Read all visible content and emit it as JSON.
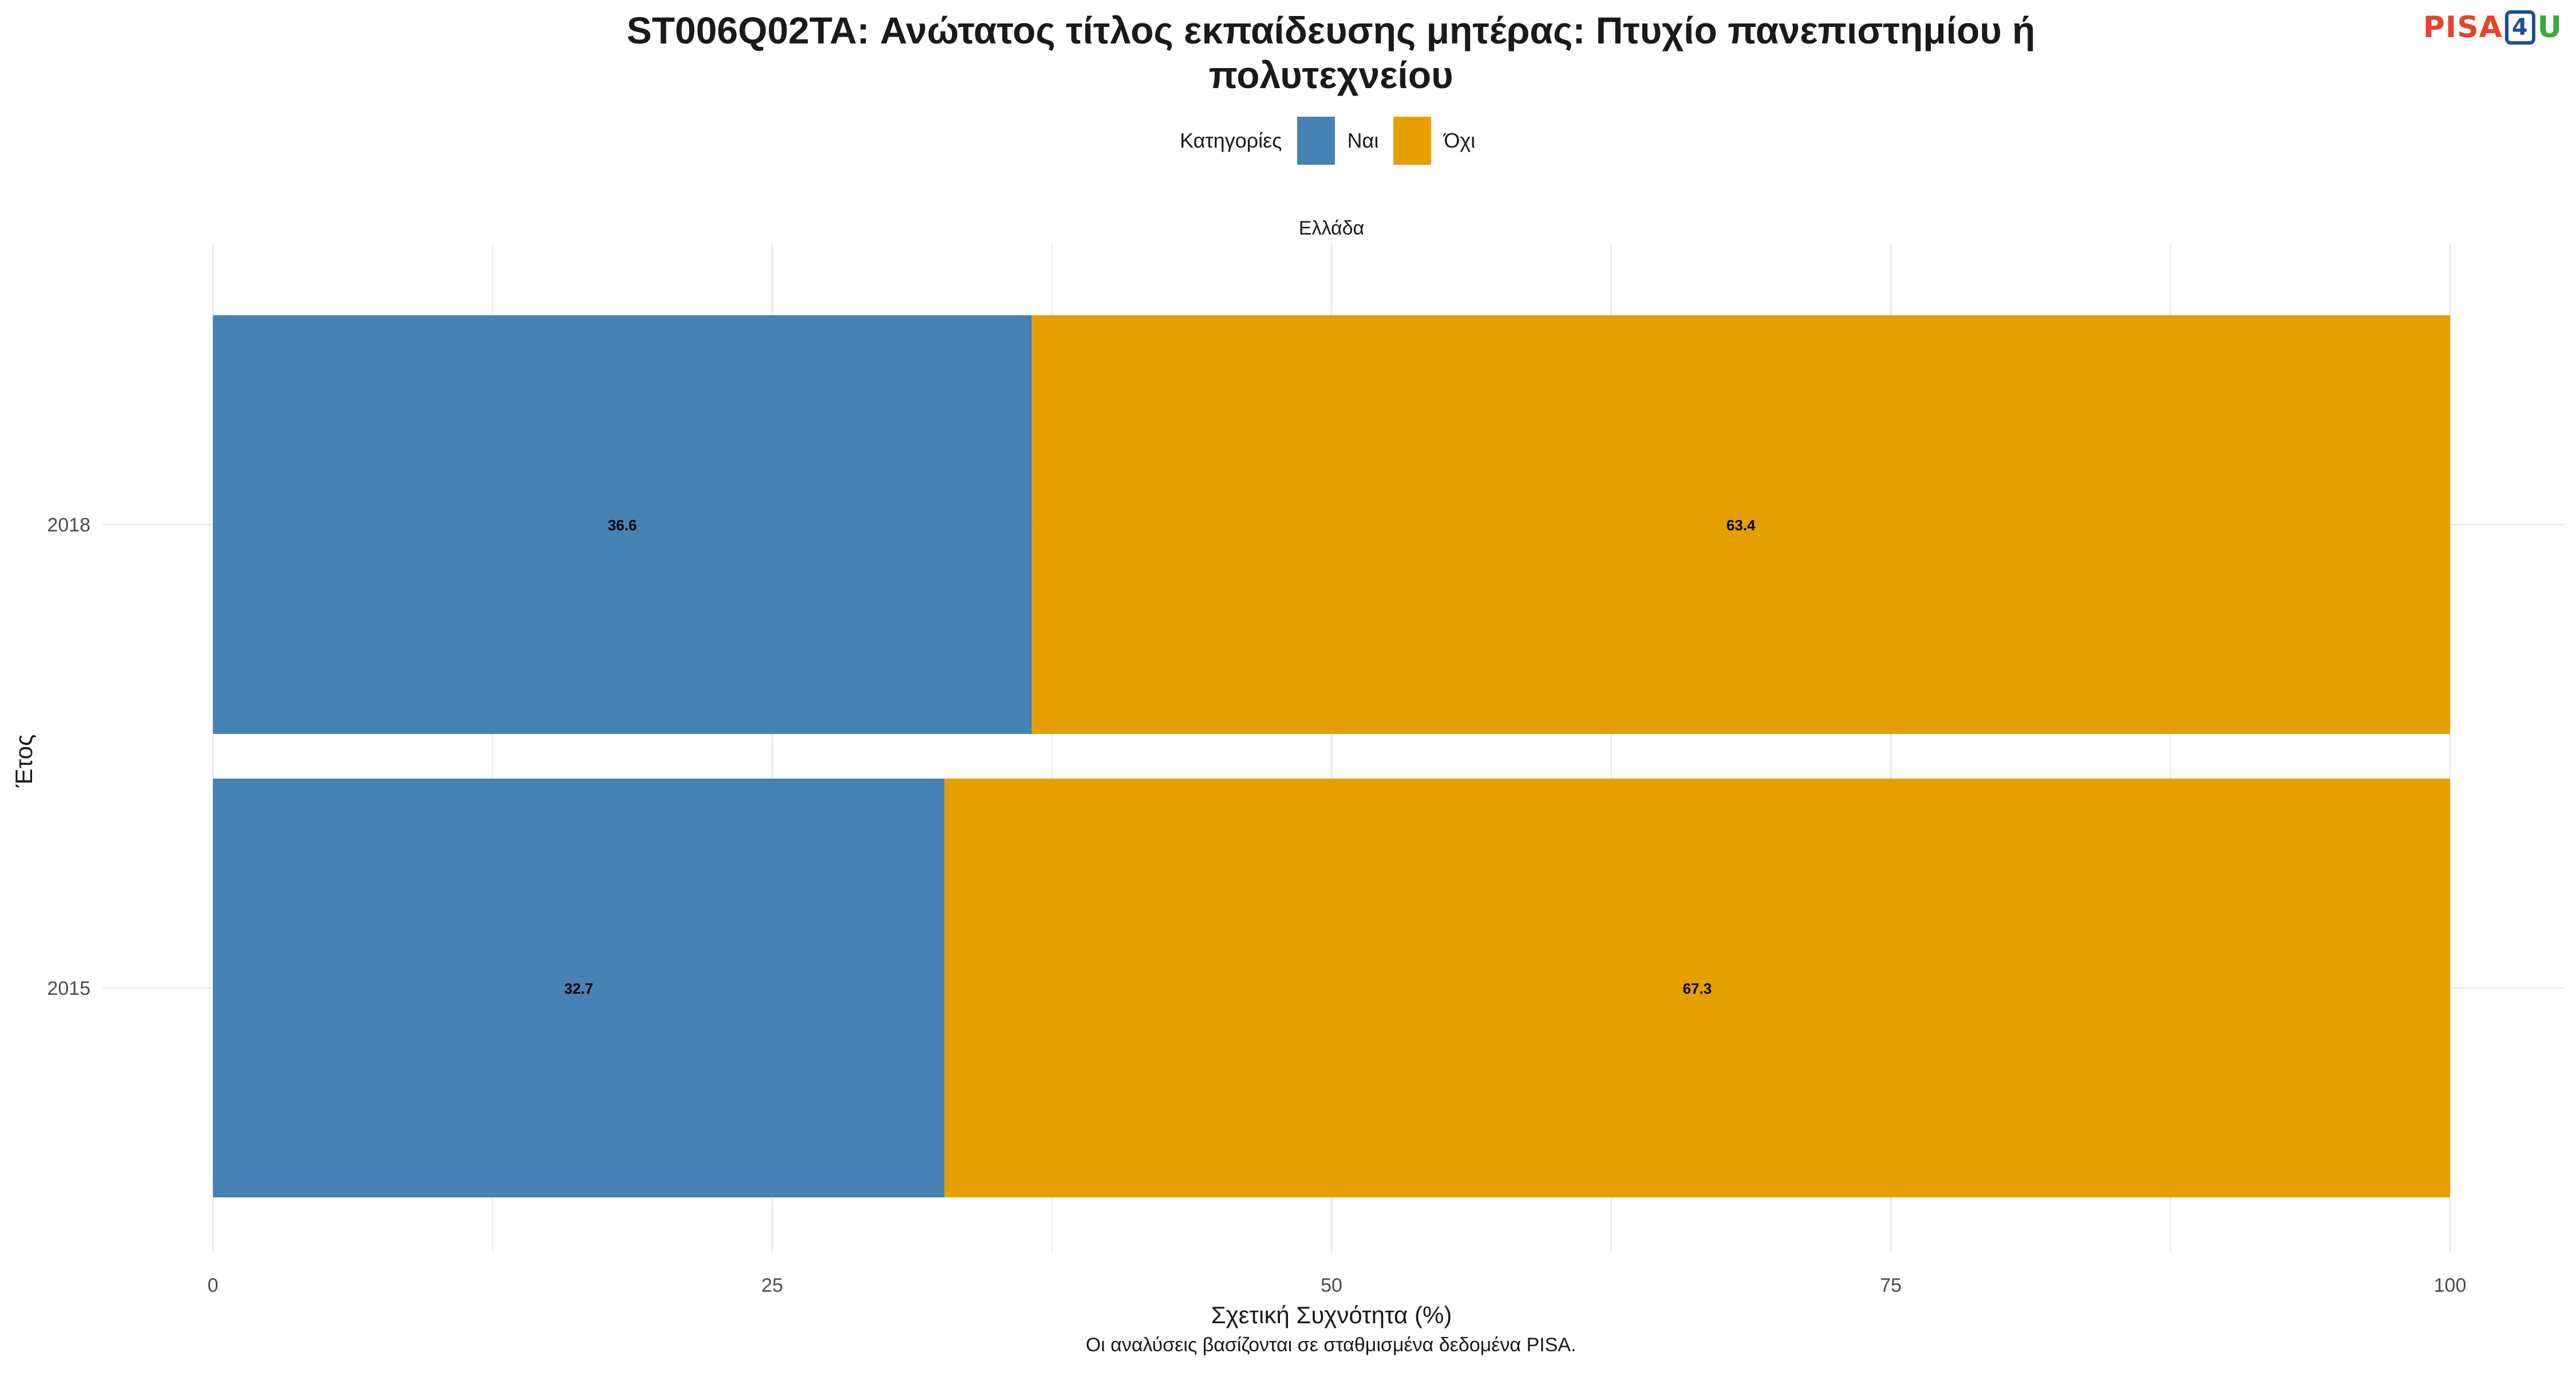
{
  "title_line1": "ST006Q02TA: Ανώτατος τίτλος εκπαίδευσης μητέρας: Πτυχίο πανεπιστημίου ή",
  "title_line2": "πολυτεχνείου",
  "logo": {
    "pisa": "PISA",
    "four": "4",
    "u": "U"
  },
  "legend": {
    "title": "Κατηγορίες",
    "placement": "top"
  },
  "caption": "Οι αναλύσεις βασίζονται σε σταθμισμένα δεδομένα PISA.",
  "colors": {
    "yes": "#4682b4",
    "no": "#e5a000",
    "grid": "#ebebeb"
  },
  "chart_data": {
    "type": "bar",
    "orientation": "horizontal",
    "stacked": true,
    "facet": "Ελλάδα",
    "categories": [
      "2018",
      "2015"
    ],
    "series": [
      {
        "name": "Ναι",
        "values": [
          36.6,
          32.7
        ]
      },
      {
        "name": "Όχι",
        "values": [
          63.4,
          67.3
        ]
      }
    ],
    "xlabel": "Σχετική Συχνότητα (%)",
    "ylabel": "Έτος",
    "xlim": [
      0,
      100
    ],
    "xticks": [
      "0",
      "25",
      "50",
      "75",
      "100"
    ],
    "grid": true
  }
}
